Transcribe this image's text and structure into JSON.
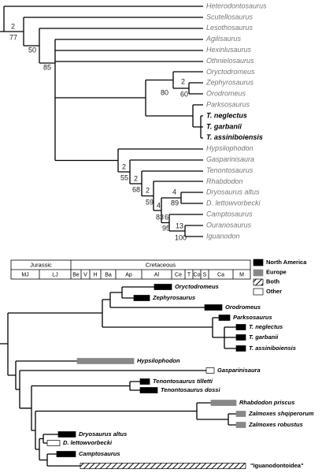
{
  "top_tree": {
    "taxa": [
      "Heterodontosaurus",
      "Scutellosaurus",
      "Lesothosaurus",
      "Agilisaurus",
      "Hexinlusaurus",
      "Othnielosaurus",
      "Oryctodromeus",
      "Zephyrosaurus",
      "Orodromeus",
      "Parksosaurus",
      "T. neglectus",
      "T. garbanii",
      "T. assiniboiensis",
      "Hypsilophodon",
      "Gasparinisaura",
      "Tenontosaurus",
      "Rhabdodon",
      "Dryosaurus altus",
      "D. lettowvorbecki",
      "Camptosaurus",
      "Ouranosaurus",
      "Iguanodon"
    ],
    "support": [
      2,
      77,
      50,
      85,
      80,
      2,
      60,
      2,
      55,
      2,
      68,
      2,
      59,
      4,
      83,
      4,
      89,
      6,
      95,
      13,
      100
    ]
  },
  "bottom_tree": {
    "periods": [
      "Jurassic",
      "Cretaceous"
    ],
    "stages": [
      "MJ",
      "LJ",
      "Be",
      "V",
      "H",
      "Ba",
      "Ap",
      "Al",
      "Ce",
      "T",
      "Co",
      "S",
      "Ca",
      "M"
    ],
    "legend": [
      "North America",
      "Europe",
      "Both",
      "Other"
    ],
    "taxa": [
      "Oryctodromeus",
      "Zephyrosaurus",
      "Orodromeus",
      "Parksosaurus",
      "T. neglectus",
      "T. garbanii",
      "T. assiniboiensis",
      "Hypsilophodon",
      "Gasparinisaura",
      "Tenontosaurus tilletti",
      "Tenontosaurus dossi",
      "Rhabdodon priscus",
      "Zalmoxes shqiperorum",
      "Zalmoxes robustus",
      "Dryosaurus altus",
      "D. lettowvorbecki",
      "Camptosaurus",
      "\"Iguanodontoidea\""
    ]
  }
}
